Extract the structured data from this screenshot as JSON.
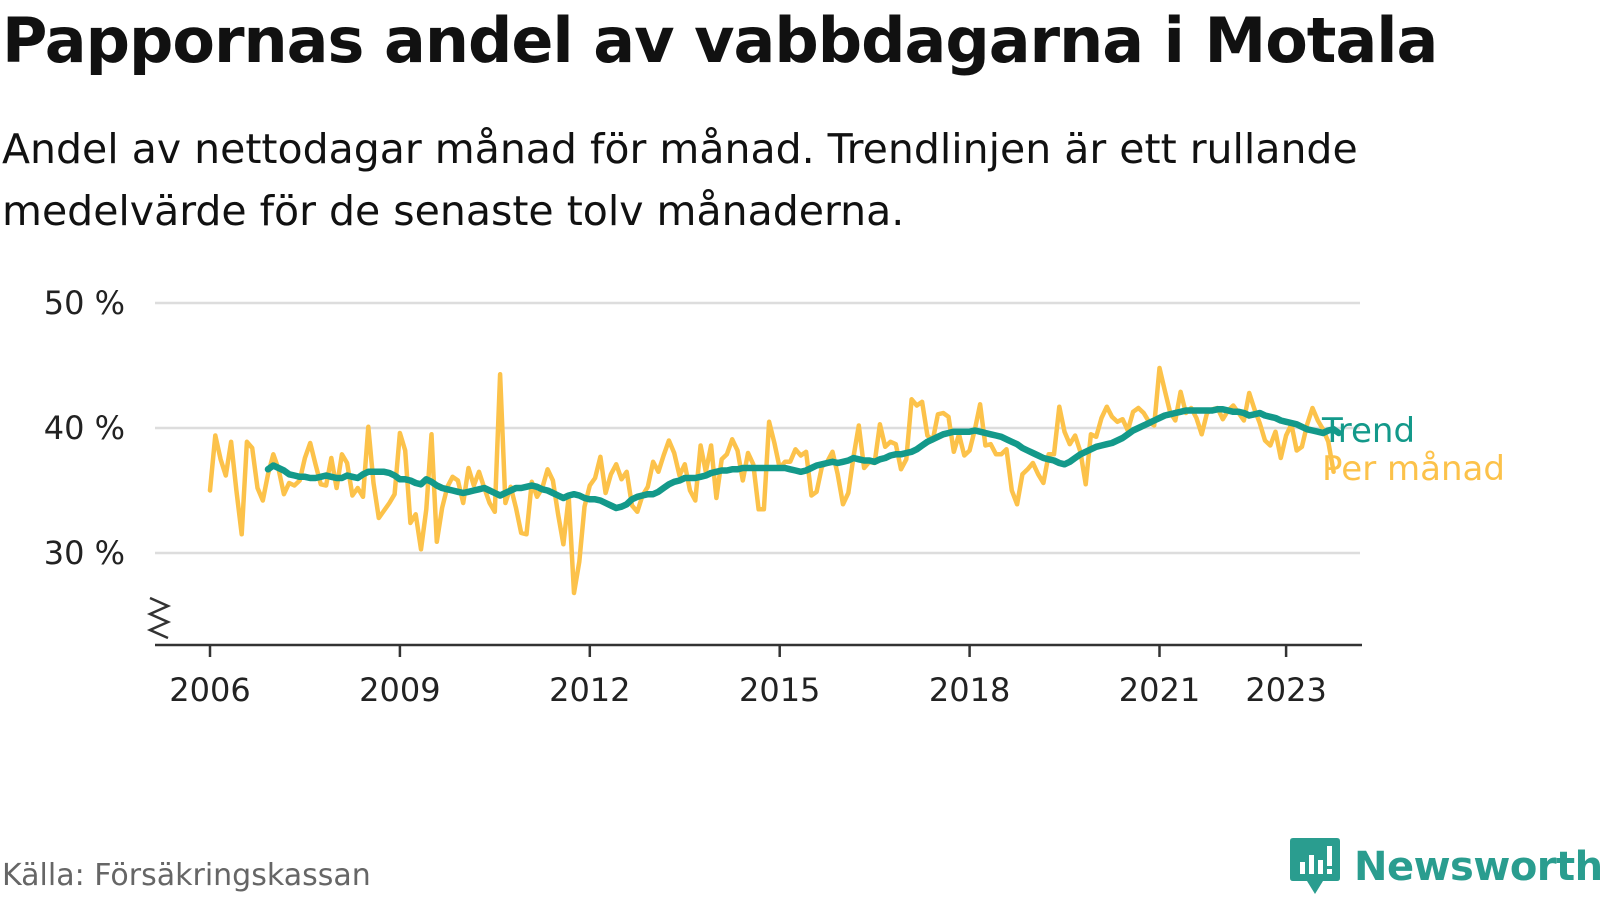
{
  "title": "Pappornas andel av vabbdagarna i Motala",
  "subtitle": "Andel av nettodagar månad för månad. Trendlinjen är ett rullande medelvärde för de senaste tolv månaderna.",
  "source": "Källa: Försäkringskassan",
  "brand": "Newsworthy",
  "colors": {
    "trend": "#13998a",
    "monthly": "#fcc24a",
    "grid": "#dddddd",
    "axis": "#333333"
  },
  "chart_data": {
    "type": "line",
    "x_scale": "time",
    "x_ticks": [
      "2006",
      "2009",
      "2012",
      "2015",
      "2018",
      "2021",
      "2023"
    ],
    "y_ticks": [
      "30 %",
      "40 %",
      "50 %"
    ],
    "ylim": [
      23,
      50
    ],
    "axis_break": true,
    "grid": "horizontal",
    "legend": "inline-right",
    "series": [
      {
        "name": "Per månad",
        "start": "2006-01",
        "values": [
          35.0,
          39.4,
          37.5,
          36.2,
          38.9,
          35.0,
          31.5,
          38.9,
          38.4,
          35.2,
          34.2,
          36.3,
          37.9,
          36.7,
          34.7,
          35.6,
          35.4,
          35.8,
          37.6,
          38.8,
          37.1,
          35.5,
          35.4,
          37.6,
          35.2,
          37.9,
          37.2,
          34.6,
          35.2,
          34.5,
          40.1,
          35.6,
          32.8,
          33.4,
          34.0,
          34.7,
          39.6,
          38.2,
          32.4,
          33.1,
          30.3,
          33.5,
          39.5,
          30.9,
          33.6,
          35.3,
          36.1,
          35.8,
          34.0,
          36.8,
          35.4,
          36.5,
          35.2,
          34.0,
          33.3,
          44.3,
          34.0,
          35.3,
          33.6,
          31.6,
          31.5,
          35.7,
          34.5,
          35.2,
          36.7,
          35.8,
          33.1,
          30.7,
          34.5,
          26.8,
          29.3,
          33.7,
          35.4,
          36.0,
          37.7,
          34.8,
          36.3,
          37.1,
          35.9,
          36.5,
          33.8,
          33.3,
          34.6,
          35.3,
          37.3,
          36.5,
          37.8,
          39.0,
          38.0,
          36.2,
          37.1,
          35.0,
          34.2,
          38.6,
          36.5,
          38.6,
          34.4,
          37.5,
          37.9,
          39.1,
          38.2,
          35.8,
          38.0,
          37.1,
          33.5,
          33.5,
          40.5,
          38.8,
          36.8,
          37.3,
          37.3,
          38.3,
          37.8,
          38.1,
          34.6,
          34.9,
          36.9,
          37.3,
          38.1,
          36.3,
          33.9,
          34.8,
          37.7,
          40.2,
          36.8,
          37.3,
          37.2,
          40.3,
          38.5,
          38.9,
          38.7,
          36.7,
          37.5,
          42.3,
          41.8,
          42.1,
          39.4,
          39.0,
          41.1,
          41.2,
          40.9,
          38.1,
          39.5,
          37.8,
          38.2,
          39.9,
          41.9,
          38.6,
          38.7,
          37.9,
          37.9,
          38.3,
          35.0,
          33.9,
          36.3,
          36.7,
          37.2,
          36.3,
          35.6,
          37.9,
          37.9,
          41.7,
          39.7,
          38.7,
          39.4,
          38.1,
          35.5,
          39.5,
          39.3,
          40.8,
          41.7,
          40.9,
          40.5,
          40.7,
          39.8,
          41.3,
          41.6,
          41.2,
          40.5,
          40.2,
          44.8,
          43.0,
          41.3,
          40.6,
          42.9,
          41.2,
          41.6,
          40.8,
          39.5,
          41.2,
          41.5,
          41.6,
          40.7,
          41.4,
          41.8,
          41.2,
          40.6,
          42.8,
          41.5,
          40.4,
          39.0,
          38.6,
          39.7,
          37.6,
          39.4,
          40.3,
          38.2,
          38.5,
          40.3,
          41.6,
          40.6,
          39.9,
          38.9,
          36.5
        ]
      },
      {
        "name": "Trend",
        "start": "2006-12",
        "values": [
          36.7,
          37.0,
          36.8,
          36.6,
          36.3,
          36.2,
          36.1,
          36.1,
          36.0,
          36.0,
          36.1,
          36.2,
          36.1,
          36.0,
          36.0,
          36.2,
          36.1,
          36.0,
          36.3,
          36.5,
          36.5,
          36.5,
          36.5,
          36.4,
          36.2,
          35.9,
          35.9,
          35.8,
          35.6,
          35.5,
          35.9,
          35.7,
          35.4,
          35.2,
          35.1,
          35.0,
          34.9,
          34.8,
          34.9,
          35.0,
          35.1,
          35.2,
          35.0,
          34.8,
          34.6,
          34.8,
          35.0,
          35.2,
          35.2,
          35.3,
          35.4,
          35.3,
          35.1,
          35.0,
          34.8,
          34.6,
          34.4,
          34.6,
          34.7,
          34.6,
          34.4,
          34.3,
          34.3,
          34.2,
          34.0,
          33.8,
          33.6,
          33.7,
          33.9,
          34.3,
          34.5,
          34.6,
          34.7,
          34.7,
          34.9,
          35.2,
          35.5,
          35.7,
          35.8,
          36.0,
          36.0,
          36.0,
          36.1,
          36.2,
          36.4,
          36.5,
          36.6,
          36.6,
          36.7,
          36.7,
          36.8,
          36.8,
          36.8,
          36.8,
          36.8,
          36.8,
          36.8,
          36.8,
          36.8,
          36.7,
          36.6,
          36.5,
          36.6,
          36.8,
          37.0,
          37.1,
          37.2,
          37.3,
          37.2,
          37.3,
          37.4,
          37.6,
          37.5,
          37.4,
          37.4,
          37.3,
          37.5,
          37.6,
          37.8,
          37.9,
          37.9,
          38.0,
          38.1,
          38.3,
          38.6,
          38.9,
          39.1,
          39.3,
          39.5,
          39.6,
          39.7,
          39.7,
          39.7,
          39.7,
          39.8,
          39.7,
          39.6,
          39.5,
          39.4,
          39.3,
          39.1,
          38.9,
          38.7,
          38.4,
          38.2,
          38.0,
          37.8,
          37.6,
          37.5,
          37.4,
          37.2,
          37.1,
          37.3,
          37.6,
          37.9,
          38.1,
          38.3,
          38.5,
          38.6,
          38.7,
          38.8,
          39.0,
          39.2,
          39.5,
          39.8,
          40.0,
          40.2,
          40.4,
          40.6,
          40.8,
          41.0,
          41.1,
          41.2,
          41.3,
          41.4,
          41.4,
          41.4,
          41.4,
          41.4,
          41.4,
          41.5,
          41.5,
          41.4,
          41.3,
          41.3,
          41.2,
          41.0,
          41.1,
          41.2,
          41.0,
          40.9,
          40.8,
          40.6,
          40.5,
          40.4,
          40.3,
          40.1,
          39.9,
          39.8,
          39.7,
          39.6,
          39.8,
          39.9,
          39.6
        ]
      }
    ]
  }
}
